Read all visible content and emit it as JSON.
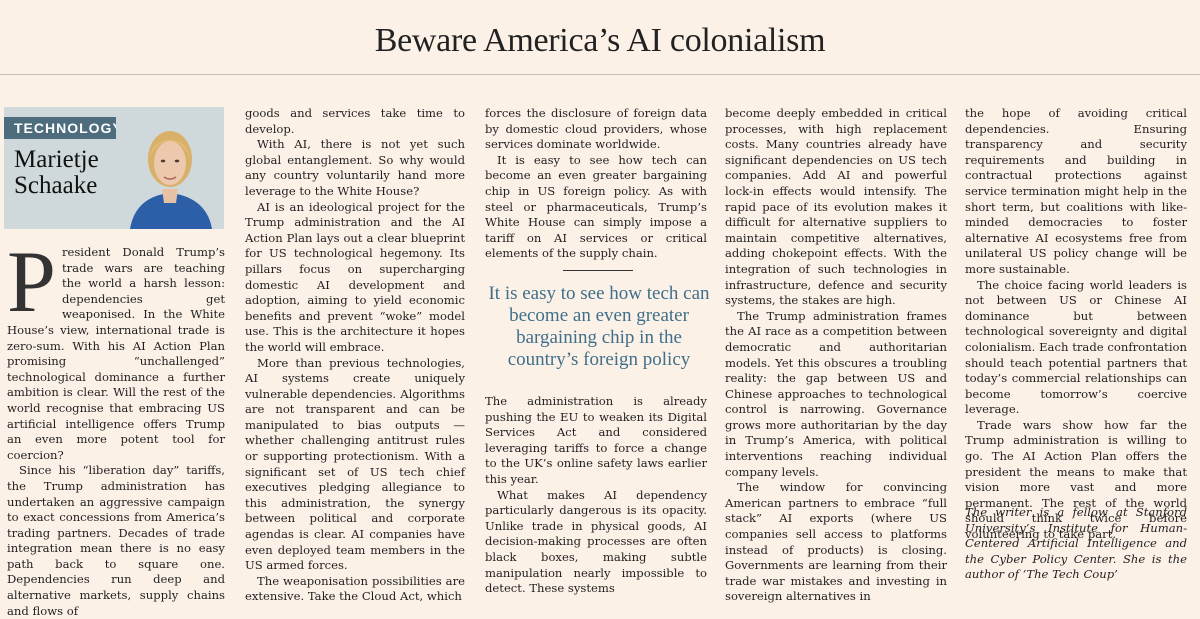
{
  "headline": "Beware America’s AI colonialism",
  "byline": {
    "section": "TECHNOLOGY",
    "name_line1": "Marietje",
    "name_line2": "Schaake"
  },
  "dropcap": "P",
  "col1": [
    "resident Donald Trump’s trade wars are teaching the world a harsh lesson: dependencies get weaponised. In the White House’s view, international trade is zero-sum. With his AI Action Plan promising “unchallenged” technological dominance a further ambition is clear. Will the rest of the world recognise that embracing US artificial intelligence offers Trump an even more potent tool for coercion?",
    "Since his “liberation day” tariffs, the Trump administration has undertaken an aggressive campaign to exact concessions from America’s trading partners. Decades of trade integration mean there is no easy path back to square one. Dependencies run deep and alternative markets, supply chains and flows of"
  ],
  "col2": [
    "goods and services take time to develop.",
    "With AI, there is not yet such global entanglement. So why would any country voluntarily hand more leverage to the White House?",
    "AI is an ideological project for the Trump administration and the AI Action Plan lays out a clear blueprint for US technological hegemony. Its pillars focus on supercharging domestic AI development and adoption, aiming to yield economic benefits and prevent “woke” model use. This is the architecture it hopes the world will embrace.",
    "More than previous technologies, AI systems create uniquely vulnerable dependencies. Algorithms are not transparent and can be manipulated to bias outputs — whether challenging antitrust rules or supporting protectionism. With a significant set of US tech chief executives pledging allegiance to this administration, the synergy between political and corporate agendas is clear. AI companies have even deployed team members in the US armed forces.",
    "The weaponisation possibilities are extensive. Take the Cloud Act, which"
  ],
  "col3_top": [
    "forces the disclosure of foreign data by domestic cloud providers, whose services dominate worldwide.",
    "It is easy to see how tech can become an even greater bargaining chip in US foreign policy. As with steel or pharmaceuticals, Trump’s White House can simply impose a tariff on AI services or critical elements of the supply chain."
  ],
  "pull_quote": "It is easy to see how tech can become an even greater bargaining chip in the country’s foreign policy",
  "col3_bottom": [
    "The administration is already pushing the EU to weaken its Digital Services Act and considered leveraging tariffs to force a change to the UK’s online safety laws earlier this year.",
    "What makes AI dependency particularly dangerous is its opacity. Unlike trade in physical goods, AI decision-making processes are often black boxes, making subtle manipulation nearly impossible to detect. These systems"
  ],
  "col4": [
    "become deeply embedded in critical processes, with high replacement costs. Many countries already have significant dependencies on US tech companies. Add AI and powerful lock-in effects would intensify. The rapid pace of its evolution makes it difficult for alternative suppliers to maintain competitive alternatives, adding chokepoint effects. With the integration of such technologies in infrastructure, defence and security systems, the stakes are high.",
    "The Trump administration frames the AI race as a competition between democratic and authoritarian models. Yet this obscures a troubling reality: the gap between US and Chinese approaches to technological control is narrowing. Governance grows more authoritarian by the day in Trump’s America, with political interventions reaching individual company levels.",
    "The window for convincing American partners to embrace “full stack” AI exports (where US companies sell access to platforms instead of products) is closing. Governments are learning from their trade war mistakes and investing in sovereign alternatives in"
  ],
  "col5": [
    "the hope of avoiding critical dependencies. Ensuring transparency and security requirements and building in contractual protections against service termination might help in the short term, but coalitions with like-minded democracies to foster alternative AI ecosystems free from unilateral US policy change will be more sustainable.",
    "The choice facing world leaders is not between US or Chinese AI dominance but between technological sovereignty and digital colonialism. Each trade confrontation should teach potential partners that today’s commercial relationships can become tomorrow’s coercive leverage.",
    "Trade wars show how far the Trump administration is willing to go. The AI Action Plan offers the president the means to make that vision more vast and more permanent. The rest of the world should think twice before volunteering to take part."
  ],
  "author_note": "The writer is a fellow at Stanford University’s Institute for Human-Centered Artificial Intelligence and the Cyber Policy Center. She is the author of ‘The Tech Coup’"
}
